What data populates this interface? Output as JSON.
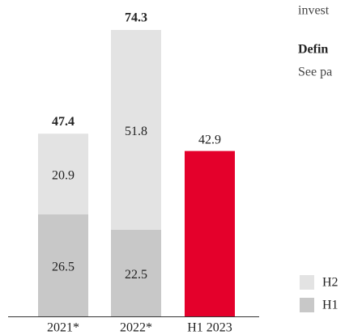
{
  "chart_data": {
    "type": "stacked_bar",
    "categories": [
      "2021*",
      "2022*",
      "H1 2023"
    ],
    "series": [
      {
        "name": "H1",
        "color": "#c8c8c8",
        "values": [
          26.5,
          22.5,
          null
        ]
      },
      {
        "name": "H2",
        "color": "#e3e3e3",
        "values": [
          20.9,
          51.8,
          null
        ]
      }
    ],
    "highlight": {
      "color": "#e4002b",
      "values": [
        null,
        null,
        42.9
      ]
    },
    "totals": [
      47.4,
      74.3,
      null
    ]
  },
  "side_text": {
    "line": "invest",
    "heading": "Defin",
    "body": "See pa"
  }
}
